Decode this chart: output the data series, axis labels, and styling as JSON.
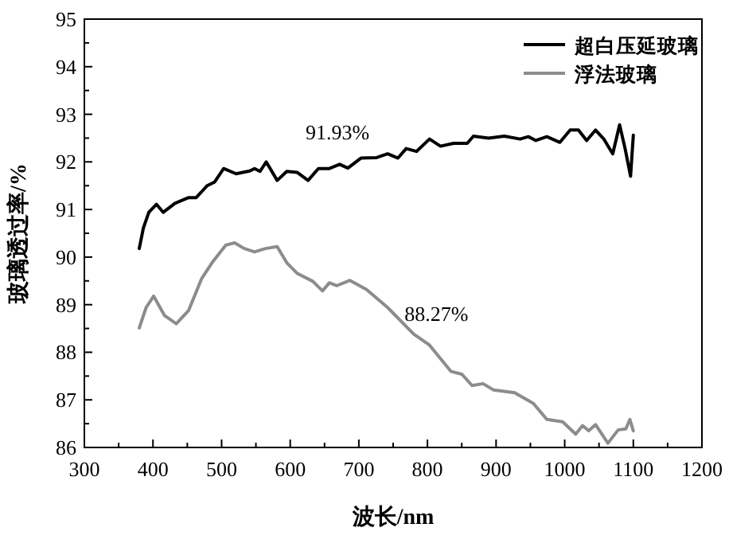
{
  "chart_data": {
    "type": "line",
    "xlabel": "波长/nm",
    "ylabel": "玻璃透过率/%",
    "legend": "top right",
    "xlim": [
      300,
      1200
    ],
    "xticks": [
      300,
      {
        "value": 350,
        "label": null
      },
      400,
      {
        "value": 450,
        "label": null
      },
      500,
      {
        "value": 550,
        "label": null
      },
      600,
      {
        "value": 650,
        "label": null
      },
      700,
      {
        "value": 750,
        "label": null
      },
      800,
      {
        "value": 850,
        "label": null
      },
      900,
      {
        "value": 950,
        "label": null
      },
      1000,
      {
        "value": 1050,
        "label": null
      },
      1100,
      {
        "value": 1150,
        "label": null
      },
      1200
    ],
    "ylim": [
      86,
      95
    ],
    "yticks": [
      86,
      {
        "value": 86.5,
        "label": null
      },
      87,
      {
        "value": 87.5,
        "label": null
      },
      88,
      {
        "value": 88.5,
        "label": null
      },
      89,
      {
        "value": 89.5,
        "label": null
      },
      90,
      {
        "value": 90.5,
        "label": null
      },
      91,
      {
        "value": 91.5,
        "label": null
      },
      92,
      {
        "value": 92.5,
        "label": null
      },
      93,
      {
        "value": 93.5,
        "label": null
      },
      94,
      {
        "value": 94.5,
        "label": null
      },
      95
    ],
    "annotations": [
      "91.93%",
      "88.27%"
    ],
    "series": [
      {
        "name": "超白压延玻璃",
        "color": "#000000",
        "x": [
          380,
          386,
          394,
          405,
          415,
          432,
          452,
          463,
          479,
          490,
          503,
          521,
          541,
          548,
          556,
          565,
          581,
          595,
          610,
          626,
          641,
          657,
          672,
          684,
          703,
          726,
          742,
          757,
          769,
          784,
          803,
          819,
          838,
          858,
          867,
          889,
          912,
          935,
          947,
          958,
          974,
          993,
          1008,
          1020,
          1032,
          1045,
          1057,
          1070,
          1080,
          1088,
          1096,
          1100
        ],
        "values": [
          90.18,
          90.61,
          90.94,
          91.11,
          90.94,
          91.13,
          91.25,
          91.25,
          91.5,
          91.58,
          91.86,
          91.75,
          91.81,
          91.86,
          91.8,
          92.0,
          91.61,
          91.8,
          91.78,
          91.61,
          91.86,
          91.86,
          91.95,
          91.87,
          92.08,
          92.09,
          92.17,
          92.08,
          92.28,
          92.22,
          92.48,
          92.33,
          92.39,
          92.39,
          92.54,
          92.5,
          92.54,
          92.48,
          92.53,
          92.45,
          92.53,
          92.41,
          92.67,
          92.67,
          92.45,
          92.67,
          92.48,
          92.17,
          92.78,
          92.28,
          91.7,
          92.56
        ]
      },
      {
        "name": "浮法玻璃",
        "color": "#8c8c8c",
        "x": [
          380,
          390,
          401,
          417,
          434,
          452,
          471,
          486,
          506,
          519,
          533,
          548,
          564,
          581,
          595,
          610,
          633,
          647,
          657,
          668,
          687,
          711,
          742,
          780,
          803,
          834,
          850,
          865,
          881,
          896,
          927,
          954,
          974,
          997,
          1016,
          1026,
          1035,
          1045,
          1063,
          1078,
          1089,
          1095,
          1100
        ],
        "values": [
          88.51,
          88.94,
          89.18,
          88.77,
          88.6,
          88.88,
          89.55,
          89.88,
          90.25,
          90.3,
          90.18,
          90.11,
          90.18,
          90.22,
          89.88,
          89.66,
          89.49,
          89.29,
          89.46,
          89.4,
          89.51,
          89.32,
          88.94,
          88.38,
          88.15,
          87.6,
          87.54,
          87.3,
          87.34,
          87.21,
          87.15,
          86.93,
          86.59,
          86.54,
          86.28,
          86.46,
          86.35,
          86.48,
          86.09,
          86.37,
          86.39,
          86.59,
          86.35
        ]
      }
    ]
  }
}
